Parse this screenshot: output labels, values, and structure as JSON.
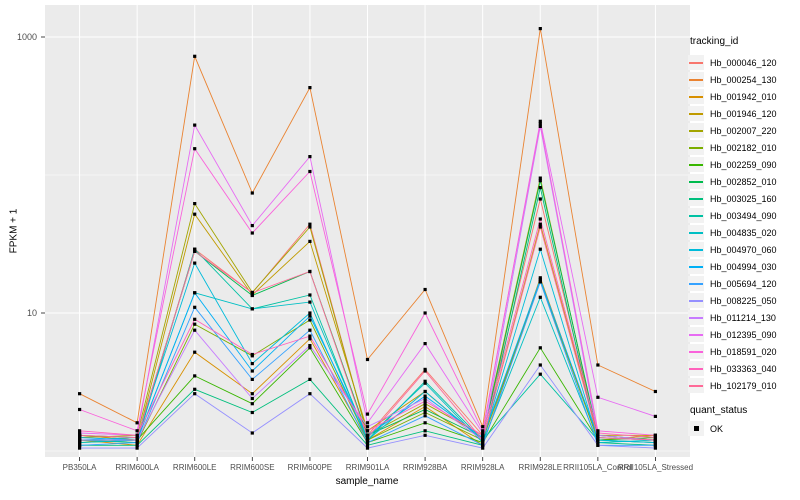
{
  "figure": {
    "y_axis_title": "FPKM + 1",
    "x_axis_title": "sample_name",
    "legend": {
      "tracking_title": "tracking_id",
      "quant_title": "quant_status",
      "quant_label": "OK"
    },
    "colors": {
      "panel_bg": "#EBEBEB",
      "gridline": "#FFFFFF",
      "legend_key_bg": "#F2F2F2",
      "tick_mark": "#333333",
      "tick_text": "#4D4D4D",
      "point": "#000000"
    }
  },
  "chart_data": {
    "type": "line",
    "title": "",
    "xlabel": "sample_name",
    "ylabel": "FPKM + 1",
    "y_scale": "log10",
    "ylim": [
      0.9,
      1500
    ],
    "y_ticks": [
      10,
      1000
    ],
    "y_minor_gridlines": [
      1,
      100
    ],
    "grid": true,
    "legend_position": "right",
    "point_status_legend": {
      "title": "quant_status",
      "entries": [
        "OK"
      ]
    },
    "categories": [
      "PB350LA",
      "RRIM600LA",
      "RRIM600LE",
      "RRIM600SE",
      "RRIM600PE",
      "RRIM901LA",
      "RRIM928BA",
      "RRIM928LA",
      "RRIM928LE",
      "RRII105LA_Control",
      "RRII105LA_Stressed"
    ],
    "series": [
      {
        "name": "Hb_000046_120",
        "color": "#F8766D",
        "values": [
          1.3,
          1.2,
          29,
          14.0,
          44,
          1.3,
          3.9,
          1.3,
          67,
          1.3,
          1.2
        ]
      },
      {
        "name": "Hb_000254_130",
        "color": "#EA8331",
        "values": [
          2.6,
          1.6,
          725,
          74,
          430,
          4.6,
          14.8,
          1.5,
          1150,
          4.2,
          2.7
        ]
      },
      {
        "name": "Hb_001942_010",
        "color": "#D89000",
        "values": [
          1.2,
          1.1,
          5.2,
          2.6,
          6.5,
          1.2,
          2.1,
          1.1,
          18.0,
          1.2,
          1.3
        ]
      },
      {
        "name": "Hb_001946_120",
        "color": "#C09B00",
        "values": [
          1.3,
          1.2,
          52,
          13.5,
          33,
          1.4,
          2.7,
          1.2,
          44,
          1.3,
          1.3
        ]
      },
      {
        "name": "Hb_002007_220",
        "color": "#A3A500",
        "values": [
          1.25,
          1.3,
          62,
          14.1,
          42,
          1.3,
          2.2,
          1.3,
          95,
          1.25,
          1.2
        ]
      },
      {
        "name": "Hb_002182_010",
        "color": "#7CAE00",
        "values": [
          1.2,
          1.15,
          8.3,
          4.9,
          8.9,
          1.2,
          1.9,
          1.2,
          17.0,
          1.2,
          1.15
        ]
      },
      {
        "name": "Hb_002259_090",
        "color": "#39B600",
        "values": [
          1.15,
          1.2,
          3.5,
          2.2,
          5.6,
          1.15,
          1.6,
          1.15,
          5.6,
          1.2,
          1.25
        ]
      },
      {
        "name": "Hb_002852_010",
        "color": "#00BB4E",
        "values": [
          1.3,
          1.25,
          28,
          13.4,
          20,
          1.3,
          2.0,
          1.25,
          91,
          1.3,
          1.2
        ]
      },
      {
        "name": "Hb_003025_160",
        "color": "#00BF7D",
        "values": [
          1.1,
          1.1,
          2.8,
          1.9,
          3.3,
          1.1,
          1.4,
          1.1,
          81,
          1.15,
          1.1
        ]
      },
      {
        "name": "Hb_003494_090",
        "color": "#00C1A3",
        "values": [
          1.2,
          1.15,
          29,
          10.7,
          13.5,
          1.2,
          3.2,
          1.2,
          3.6,
          1.2,
          1.15
        ]
      },
      {
        "name": "Hb_004835_020",
        "color": "#00BFC4",
        "values": [
          1.15,
          1.2,
          14.0,
          10.7,
          12.0,
          1.25,
          3.1,
          1.15,
          13.0,
          1.15,
          1.2
        ]
      },
      {
        "name": "Hb_004970_060",
        "color": "#00BBDA",
        "values": [
          1.2,
          1.25,
          23,
          4.3,
          10.0,
          1.2,
          2.7,
          1.2,
          29,
          1.2,
          1.15
        ]
      },
      {
        "name": "Hb_004994_030",
        "color": "#00B0F6",
        "values": [
          1.25,
          1.2,
          14.0,
          3.8,
          9.5,
          1.3,
          2.5,
          1.25,
          17.5,
          1.25,
          1.2
        ]
      },
      {
        "name": "Hb_005694_120",
        "color": "#35A2FF",
        "values": [
          1.1,
          1.15,
          11.0,
          3.3,
          7.5,
          1.15,
          1.8,
          1.1,
          16.8,
          1.1,
          1.1
        ]
      },
      {
        "name": "Hb_008225_050",
        "color": "#9590FF",
        "values": [
          1.05,
          1.05,
          2.6,
          1.35,
          2.6,
          1.05,
          1.3,
          1.05,
          4.2,
          1.1,
          1.05
        ]
      },
      {
        "name": "Hb_011214_130",
        "color": "#C77CFF",
        "values": [
          1.2,
          1.2,
          7.5,
          2.4,
          5.8,
          1.5,
          2.4,
          1.2,
          225,
          1.3,
          1.2
        ]
      },
      {
        "name": "Hb_012395_090",
        "color": "#E76BF3",
        "values": [
          1.35,
          1.3,
          230,
          43,
          136,
          1.6,
          6.0,
          1.35,
          245,
          2.45,
          1.78
        ]
      },
      {
        "name": "Hb_018591_020",
        "color": "#FA62DB",
        "values": [
          2.0,
          1.4,
          155,
          38,
          106,
          1.85,
          10.0,
          1.4,
          235,
          1.4,
          1.3
        ]
      },
      {
        "name": "Hb_033363_040",
        "color": "#FF62BC",
        "values": [
          1.4,
          1.3,
          9.0,
          5.0,
          6.8,
          1.4,
          2.3,
          1.3,
          48,
          1.35,
          1.25
        ]
      },
      {
        "name": "Hb_102179_010",
        "color": "#FF6A98",
        "values": [
          1.3,
          1.25,
          28,
          14.0,
          20,
          1.25,
          3.8,
          1.2,
          42,
          1.25,
          1.2
        ]
      }
    ]
  }
}
